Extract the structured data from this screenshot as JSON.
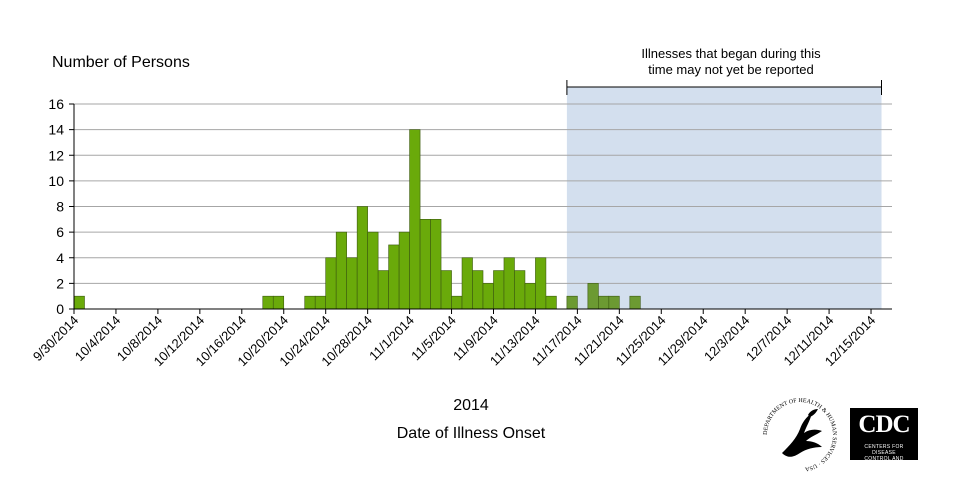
{
  "chart_data": {
    "type": "bar",
    "title": "",
    "ylabel": "Number of Persons",
    "xlabel_year": "2014",
    "xlabel": "Date of Illness Onset",
    "ylim": [
      0,
      16
    ],
    "yticks": [
      0,
      2,
      4,
      6,
      8,
      10,
      12,
      14,
      16
    ],
    "grid": true,
    "x_start_date": "9/30/2014",
    "x_end_date": "12/17/2014",
    "x_tick_labels": [
      "9/30/2014",
      "10/4/2014",
      "10/8/2014",
      "10/12/2014",
      "10/16/2014",
      "10/20/2014",
      "10/24/2014",
      "10/28/2014",
      "11/1/2014",
      "11/5/2014",
      "11/9/2014",
      "11/13/2014",
      "11/17/2014",
      "11/21/2014",
      "11/25/2014",
      "11/29/2014",
      "12/3/2014",
      "12/7/2014",
      "12/11/2014",
      "12/15/2014"
    ],
    "bars": [
      {
        "date": "9/30/2014",
        "value": 1
      },
      {
        "date": "10/18/2014",
        "value": 1
      },
      {
        "date": "10/19/2014",
        "value": 1
      },
      {
        "date": "10/22/2014",
        "value": 1
      },
      {
        "date": "10/23/2014",
        "value": 1
      },
      {
        "date": "10/24/2014",
        "value": 4
      },
      {
        "date": "10/25/2014",
        "value": 6
      },
      {
        "date": "10/26/2014",
        "value": 4
      },
      {
        "date": "10/27/2014",
        "value": 8
      },
      {
        "date": "10/28/2014",
        "value": 6
      },
      {
        "date": "10/29/2014",
        "value": 3
      },
      {
        "date": "10/30/2014",
        "value": 5
      },
      {
        "date": "10/31/2014",
        "value": 6
      },
      {
        "date": "11/1/2014",
        "value": 14
      },
      {
        "date": "11/2/2014",
        "value": 7
      },
      {
        "date": "11/3/2014",
        "value": 7
      },
      {
        "date": "11/4/2014",
        "value": 3
      },
      {
        "date": "11/5/2014",
        "value": 1
      },
      {
        "date": "11/6/2014",
        "value": 4
      },
      {
        "date": "11/7/2014",
        "value": 3
      },
      {
        "date": "11/8/2014",
        "value": 2
      },
      {
        "date": "11/9/2014",
        "value": 3
      },
      {
        "date": "11/10/2014",
        "value": 4
      },
      {
        "date": "11/11/2014",
        "value": 3
      },
      {
        "date": "11/12/2014",
        "value": 2
      },
      {
        "date": "11/13/2014",
        "value": 4
      },
      {
        "date": "11/14/2014",
        "value": 1
      },
      {
        "date": "11/16/2014",
        "value": 1
      },
      {
        "date": "11/18/2014",
        "value": 2
      },
      {
        "date": "11/19/2014",
        "value": 1
      },
      {
        "date": "11/20/2014",
        "value": 1
      },
      {
        "date": "11/22/2014",
        "value": 1
      }
    ],
    "shaded_region": {
      "start_date": "11/16/2014",
      "end_date": "12/16/2014",
      "label_line1": "Illnesses that began during this",
      "label_line2": "time may not yet be reported"
    },
    "colors": {
      "bar": "#6aaa0a",
      "bar_in_region": "#6c9a32",
      "bar_edge": "#3c5a10",
      "region_fill": "#d3dfee",
      "grid": "#a6a6a6",
      "axis": "#000000"
    }
  },
  "logos": {
    "hhs_ring_text": "DEPARTMENT OF HEALTH & HUMAN SERVICES · USA",
    "cdc_letters": "CDC",
    "cdc_sub_line1": "CENTERS FOR DISEASE",
    "cdc_sub_line2": "CONTROL AND PREVENTION"
  }
}
